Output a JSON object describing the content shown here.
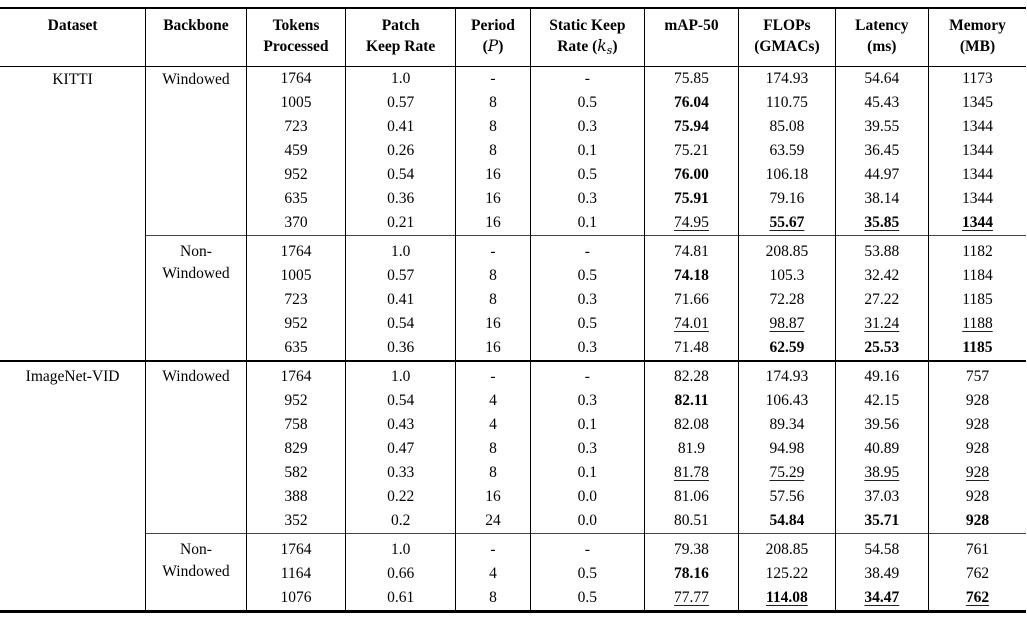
{
  "page": {
    "background": "#ffffff",
    "text_color": "#000000",
    "rule_color": "#000000"
  },
  "header": {
    "dataset": "Dataset",
    "backbone": "Backbone",
    "tokens_l1": "Tokens",
    "tokens_l2": "Processed",
    "patch_l1": "Patch",
    "patch_l2": "Keep Rate",
    "period_l1": "Period",
    "period_open": "(",
    "period_var": "P",
    "period_close": ")",
    "static_l1": "Static Keep",
    "static_pre": "Rate (",
    "static_var": "k",
    "static_sub": "s",
    "static_close": ")",
    "map": "mAP-50",
    "flops_l1": "FLOPs",
    "flops_l2": "(GMACs)",
    "latency_l1": "Latency",
    "latency_l2": "(ms)",
    "memory_l1": "Memory",
    "memory_l2": "(MB)"
  },
  "groups": [
    {
      "dataset": "KITTI",
      "backbone": [
        "Windowed"
      ],
      "rule": "none",
      "rows": [
        [
          "1764",
          "1.0",
          "-",
          "-",
          "75.85",
          "174.93",
          "54.64",
          "1173"
        ],
        [
          "1005",
          "0.57",
          "8",
          "0.5",
          {
            "t": "76.04",
            "s": "b"
          },
          "110.75",
          "45.43",
          "1345"
        ],
        [
          "723",
          "0.41",
          "8",
          "0.3",
          {
            "t": "75.94",
            "s": "b"
          },
          "85.08",
          "39.55",
          "1344"
        ],
        [
          "459",
          "0.26",
          "8",
          "0.1",
          "75.21",
          "63.59",
          "36.45",
          "1344"
        ],
        [
          "952",
          "0.54",
          "16",
          "0.5",
          {
            "t": "76.00",
            "s": "b"
          },
          "106.18",
          "44.97",
          "1344"
        ],
        [
          "635",
          "0.36",
          "16",
          "0.3",
          {
            "t": "75.91",
            "s": "b"
          },
          "79.16",
          "38.14",
          "1344"
        ],
        [
          "370",
          "0.21",
          "16",
          "0.1",
          {
            "t": "74.95",
            "s": "u"
          },
          {
            "t": "55.67",
            "s": "bu"
          },
          {
            "t": "35.85",
            "s": "bu"
          },
          {
            "t": "1344",
            "s": "bu"
          }
        ]
      ]
    },
    {
      "dataset": "",
      "backbone": [
        "Non-",
        "Windowed"
      ],
      "rule": "partial",
      "rows": [
        [
          "1764",
          "1.0",
          "-",
          "-",
          "74.81",
          "208.85",
          "53.88",
          "1182"
        ],
        [
          "1005",
          "0.57",
          "8",
          "0.5",
          {
            "t": "74.18",
            "s": "b"
          },
          "105.3",
          "32.42",
          "1184"
        ],
        [
          "723",
          "0.41",
          "8",
          "0.3",
          "71.66",
          "72.28",
          "27.22",
          "1185"
        ],
        [
          "952",
          "0.54",
          "16",
          "0.5",
          {
            "t": "74.01",
            "s": "u"
          },
          {
            "t": "98.87",
            "s": "u"
          },
          {
            "t": "31.24",
            "s": "u"
          },
          {
            "t": "1188",
            "s": "u"
          }
        ],
        [
          "635",
          "0.36",
          "16",
          "0.3",
          "71.48",
          {
            "t": "62.59",
            "s": "b"
          },
          {
            "t": "25.53",
            "s": "b"
          },
          {
            "t": "1185",
            "s": "b"
          }
        ]
      ]
    },
    {
      "dataset": "ImageNet-VID",
      "backbone": [
        "Windowed"
      ],
      "rule": "full",
      "rows": [
        [
          "1764",
          "1.0",
          "-",
          "-",
          "82.28",
          "174.93",
          "49.16",
          "757"
        ],
        [
          "952",
          "0.54",
          "4",
          "0.3",
          {
            "t": "82.11",
            "s": "b"
          },
          "106.43",
          "42.15",
          "928"
        ],
        [
          "758",
          "0.43",
          "4",
          "0.1",
          "82.08",
          "89.34",
          "39.56",
          "928"
        ],
        [
          "829",
          "0.47",
          "8",
          "0.3",
          "81.9",
          "94.98",
          "40.89",
          "928"
        ],
        [
          "582",
          "0.33",
          "8",
          "0.1",
          {
            "t": "81.78",
            "s": "u"
          },
          {
            "t": "75.29",
            "s": "u"
          },
          {
            "t": "38.95",
            "s": "u"
          },
          {
            "t": "928",
            "s": "u"
          }
        ],
        [
          "388",
          "0.22",
          "16",
          "0.0",
          "81.06",
          "57.56",
          "37.03",
          "928"
        ],
        [
          "352",
          "0.2",
          "24",
          "0.0",
          "80.51",
          {
            "t": "54.84",
            "s": "b"
          },
          {
            "t": "35.71",
            "s": "b"
          },
          {
            "t": "928",
            "s": "b"
          }
        ]
      ]
    },
    {
      "dataset": "",
      "backbone": [
        "Non-",
        "Windowed"
      ],
      "rule": "partial",
      "rows": [
        [
          "1764",
          "1.0",
          "-",
          "-",
          "79.38",
          "208.85",
          "54.58",
          "761"
        ],
        [
          "1164",
          "0.66",
          "4",
          "0.5",
          {
            "t": "78.16",
            "s": "b"
          },
          "125.22",
          "38.49",
          "762"
        ],
        [
          "1076",
          "0.61",
          "8",
          "0.5",
          {
            "t": "77.77",
            "s": "u"
          },
          {
            "t": "114.08",
            "s": "bu"
          },
          {
            "t": "34.47",
            "s": "bu"
          },
          {
            "t": "762",
            "s": "bu"
          }
        ]
      ]
    }
  ]
}
